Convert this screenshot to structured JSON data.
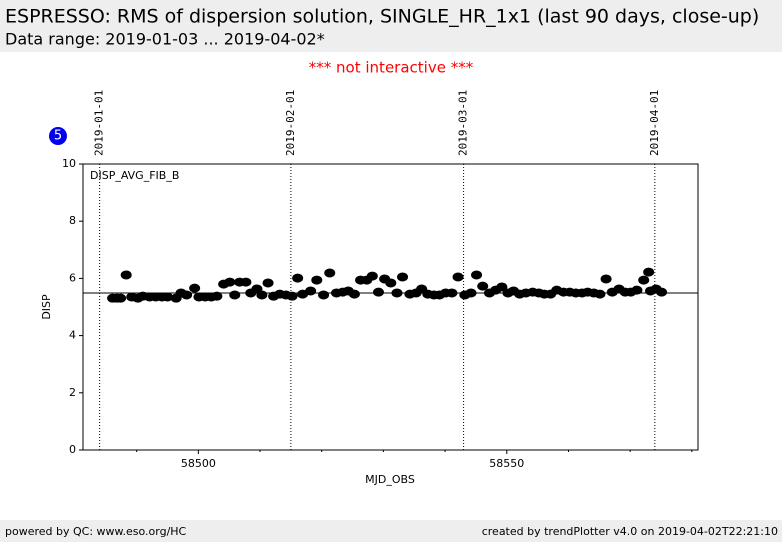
{
  "header": {
    "title": "ESPRESSO: RMS of dispersion solution, SINGLE_HR_1x1 (last 90 days, close-up)",
    "subtitle": "Data range: 2019-01-03 ... 2019-04-02*"
  },
  "notice": "*** not interactive ***",
  "badge": "5",
  "footer": {
    "left": "powered by QC: www.eso.org/HC",
    "right": "created by trendPlotter v4.0 on 2019-04-02T22:21:10"
  },
  "chart_data": {
    "type": "scatter",
    "panel_label": "DISP_AVG_FIB_B",
    "xlabel": "MJD_OBS",
    "ylabel": "DISP",
    "color": "#000000",
    "xlim": [
      58481.3,
      58581.0
    ],
    "ylim": [
      0,
      10
    ],
    "xticks": [
      58500,
      58550
    ],
    "xminorticks": [
      58490,
      58510,
      58520,
      58530,
      58540,
      58560,
      58570,
      58580
    ],
    "yticks": [
      0,
      2,
      4,
      6,
      8,
      10
    ],
    "reference_line": 5.49,
    "date_markers": [
      {
        "label": "2019-01-01",
        "x": 58484
      },
      {
        "label": "2019-02-01",
        "x": 58515
      },
      {
        "label": "2019-03-01",
        "x": 58543
      },
      {
        "label": "2019-04-01",
        "x": 58574
      }
    ],
    "x": [
      58486.1,
      58486.8,
      58487.4,
      58488.3,
      58489.2,
      58490.2,
      58491.0,
      58492.1,
      58493.1,
      58494.1,
      58495.0,
      58496.4,
      58497.2,
      58498.1,
      58499.4,
      58500.1,
      58501.1,
      58502.1,
      58503.0,
      58504.1,
      58505.1,
      58505.9,
      58506.7,
      58507.7,
      58508.5,
      58509.5,
      58510.3,
      58511.3,
      58512.2,
      58513.2,
      58514.2,
      58515.2,
      58516.1,
      58516.9,
      58518.2,
      58519.2,
      58520.3,
      58521.3,
      58522.4,
      58523.4,
      58524.3,
      58525.3,
      58526.3,
      58527.3,
      58528.2,
      58529.2,
      58530.2,
      58531.2,
      58532.2,
      58533.1,
      58534.3,
      58535.3,
      58536.2,
      58537.2,
      58538.2,
      58539.1,
      58540.1,
      58541.1,
      58542.1,
      58543.2,
      58544.2,
      58545.1,
      58546.1,
      58547.2,
      58548.2,
      58549.2,
      58550.2,
      58551.1,
      58552.1,
      58553.1,
      58554.2,
      58555.2,
      58556.1,
      58557.1,
      58558.1,
      58559.2,
      58560.2,
      58561.2,
      58562.2,
      58563.1,
      58564.1,
      58565.1,
      58566.1,
      58567.1,
      58568.2,
      58569.2,
      58570.1,
      58571.1,
      58572.2,
      58573.0,
      58573.3,
      58574.2,
      58575.1
    ],
    "values": [
      5.31,
      5.31,
      5.31,
      6.12,
      5.35,
      5.31,
      5.38,
      5.35,
      5.35,
      5.35,
      5.35,
      5.31,
      5.49,
      5.42,
      5.66,
      5.35,
      5.35,
      5.35,
      5.38,
      5.8,
      5.87,
      5.42,
      5.87,
      5.87,
      5.49,
      5.63,
      5.42,
      5.84,
      5.38,
      5.45,
      5.42,
      5.38,
      6.01,
      5.45,
      5.56,
      5.94,
      5.42,
      6.19,
      5.49,
      5.52,
      5.56,
      5.45,
      5.94,
      5.94,
      6.08,
      5.52,
      5.98,
      5.84,
      5.49,
      6.05,
      5.45,
      5.49,
      5.63,
      5.45,
      5.42,
      5.42,
      5.49,
      5.49,
      6.05,
      5.42,
      5.49,
      6.12,
      5.73,
      5.49,
      5.59,
      5.7,
      5.49,
      5.56,
      5.45,
      5.49,
      5.52,
      5.49,
      5.45,
      5.45,
      5.59,
      5.52,
      5.52,
      5.49,
      5.49,
      5.52,
      5.49,
      5.45,
      5.98,
      5.52,
      5.63,
      5.52,
      5.52,
      5.59,
      5.94,
      6.22,
      5.56,
      5.63,
      5.52
    ]
  }
}
